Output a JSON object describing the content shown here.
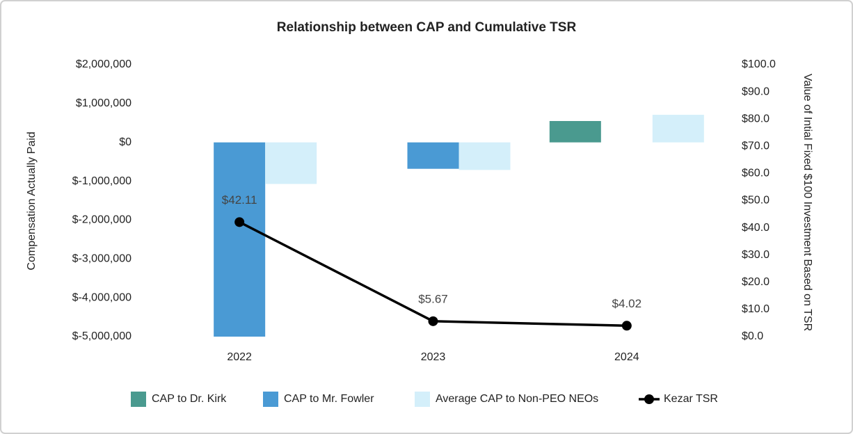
{
  "chart_data": {
    "type": "bar",
    "title": "Relationship between CAP and Cumulative TSR",
    "categories": [
      "2022",
      "2023",
      "2024"
    ],
    "y_label": "Compensation Actually Paid",
    "y2_label": "Value of Intial Fixed $100 Investment Based on TSR",
    "ylim": [
      -5000000,
      2000000
    ],
    "yticks": [
      {
        "value": 2000000,
        "label": "$2,000,000"
      },
      {
        "value": 1000000,
        "label": "$1,000,000"
      },
      {
        "value": 0,
        "label": "$0"
      },
      {
        "value": -1000000,
        "label": "$-1,000,000"
      },
      {
        "value": -2000000,
        "label": "$-2,000,000"
      },
      {
        "value": -3000000,
        "label": "$-3,000,000"
      },
      {
        "value": -4000000,
        "label": "$-4,000,000"
      },
      {
        "value": -5000000,
        "label": "$-5,000,000"
      }
    ],
    "y2lim": [
      0,
      100
    ],
    "y2ticks": [
      {
        "value": 100,
        "label": "$100.0"
      },
      {
        "value": 90,
        "label": "$90.0"
      },
      {
        "value": 80,
        "label": "$80.0"
      },
      {
        "value": 70,
        "label": "$70.0"
      },
      {
        "value": 60,
        "label": "$60.0"
      },
      {
        "value": 50,
        "label": "$50.0"
      },
      {
        "value": 40,
        "label": "$40.0"
      },
      {
        "value": 30,
        "label": "$30.0"
      },
      {
        "value": 20,
        "label": "$20.0"
      },
      {
        "value": 10,
        "label": "$10.0"
      },
      {
        "value": 0,
        "label": "$0.0"
      }
    ],
    "grid": false,
    "legend": "bottom",
    "series": [
      {
        "name": "CAP to Dr. Kirk",
        "type": "bar",
        "color": "#4a9a8f",
        "values": [
          null,
          null,
          550000
        ]
      },
      {
        "name": "CAP to Mr. Fowler",
        "type": "bar",
        "color": "#4a9ad4",
        "values": [
          -5000000,
          -680000,
          null
        ]
      },
      {
        "name": "Average CAP to Non-PEO NEOs",
        "type": "bar",
        "color": "#d4effa",
        "values": [
          -1070000,
          -710000,
          710000
        ]
      },
      {
        "name": "Kezar TSR",
        "type": "line",
        "axis": "y2",
        "color": "#000000",
        "values": [
          42.11,
          5.67,
          4.02
        ],
        "value_labels": [
          "$42.11",
          "$5.67",
          "$4.02"
        ]
      }
    ]
  }
}
